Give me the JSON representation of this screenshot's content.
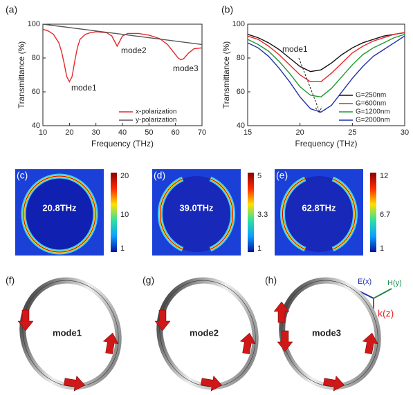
{
  "chart_data": [
    {
      "type": "line",
      "panel_label": "(a)",
      "xlabel": "Frequency (THz)",
      "ylabel": "Transmittance (%)",
      "x": [
        10,
        12,
        14,
        16,
        17,
        18,
        19,
        20,
        21,
        22,
        23,
        24,
        26,
        28,
        30,
        34,
        36,
        37,
        38,
        39,
        40,
        42,
        46,
        50,
        54,
        57,
        59,
        61,
        62,
        63,
        65,
        67,
        70
      ],
      "series": [
        {
          "name": "x-polarization",
          "color": "#e8262b",
          "x": [
            10,
            12,
            14,
            16,
            17,
            18,
            19,
            20,
            21,
            22,
            23,
            24,
            26,
            28,
            30,
            34,
            36,
            37,
            38,
            39,
            40,
            42,
            46,
            50,
            54,
            57,
            59,
            61,
            62,
            63,
            65,
            67,
            70
          ],
          "values": [
            97,
            96,
            94,
            89,
            84,
            77,
            69,
            66,
            69,
            78,
            86,
            91,
            94,
            95,
            95.5,
            95,
            93,
            90,
            87,
            90,
            93,
            94.5,
            94.5,
            93.5,
            91.5,
            88,
            84,
            80,
            79,
            79.5,
            83,
            85.5,
            86
          ]
        },
        {
          "name": "y-polarization",
          "color": "#555555",
          "x": [
            10,
            70
          ],
          "values": [
            100,
            88
          ]
        }
      ],
      "xlim": [
        10,
        70
      ],
      "ylim": [
        40,
        100
      ],
      "xticks": [
        10,
        20,
        30,
        40,
        50,
        60,
        70
      ],
      "yticks": [
        40,
        60,
        80,
        100
      ],
      "annotations": [
        "mode1",
        "mode2",
        "mode3"
      ],
      "legend": "lower right"
    },
    {
      "type": "line",
      "panel_label": "(b)",
      "xlabel": "Frequency (THz)",
      "ylabel": "Transmittance (%)",
      "x": [
        15,
        16,
        17,
        18,
        19,
        20,
        21,
        22,
        23,
        24,
        25,
        26,
        27,
        28,
        29,
        30
      ],
      "series": [
        {
          "name": "G=250nm",
          "color": "#111111",
          "x": [
            15,
            16,
            17,
            18,
            19,
            20,
            21,
            22,
            23,
            24,
            25,
            26,
            27,
            28,
            29,
            30
          ],
          "values": [
            94,
            92,
            89,
            85,
            80,
            75,
            72,
            73,
            77,
            82,
            86,
            89,
            91,
            93,
            94,
            95
          ]
        },
        {
          "name": "G=600nm",
          "color": "#e8262b",
          "x": [
            15,
            16,
            17,
            18,
            19,
            20,
            21,
            22,
            23,
            24,
            25,
            26,
            27,
            28,
            29,
            30
          ],
          "values": [
            93,
            91,
            87,
            82,
            76,
            70,
            66,
            66,
            71,
            77,
            83,
            87,
            90,
            92,
            94,
            95
          ]
        },
        {
          "name": "G=1200nm",
          "color": "#1a9a2a",
          "x": [
            15,
            16,
            17,
            18,
            19,
            20,
            21,
            22,
            23,
            24,
            25,
            26,
            27,
            28,
            29,
            30
          ],
          "values": [
            91,
            88,
            84,
            78,
            71,
            63,
            58,
            57,
            62,
            69,
            76,
            82,
            86,
            89,
            92,
            94
          ]
        },
        {
          "name": "G=2000nm",
          "color": "#1f2fa8",
          "x": [
            15,
            16,
            17,
            18,
            19,
            20,
            21,
            22,
            23,
            24,
            25,
            26,
            27,
            28,
            29,
            30
          ],
          "values": [
            89,
            86,
            81,
            74,
            66,
            57,
            50,
            48,
            52,
            60,
            68,
            75,
            81,
            85,
            89,
            93
          ]
        }
      ],
      "xlim": [
        15,
        30
      ],
      "ylim": [
        40,
        100
      ],
      "xticks": [
        15,
        20,
        25,
        30
      ],
      "yticks": [
        40,
        60,
        80,
        100
      ],
      "annotations": [
        "mode1"
      ],
      "legend": "lower right"
    }
  ],
  "field_maps": [
    {
      "label": "(c)",
      "frequency": "20.8THz",
      "colorbar_ticks": [
        20,
        10,
        1
      ]
    },
    {
      "label": "(d)",
      "frequency": "39.0THz",
      "colorbar_ticks": [
        5,
        3.3,
        1
      ]
    },
    {
      "label": "(e)",
      "frequency": "62.8THz",
      "colorbar_ticks": [
        12,
        6.7,
        1
      ]
    }
  ],
  "mode_diagrams": [
    {
      "label": "(f)",
      "mode": "mode1"
    },
    {
      "label": "(g)",
      "mode": "mode2"
    },
    {
      "label": "(h)",
      "mode": "mode3"
    }
  ],
  "axes_labels": {
    "e": "E(x)",
    "h": "H(y)",
    "k": "k(z)"
  }
}
